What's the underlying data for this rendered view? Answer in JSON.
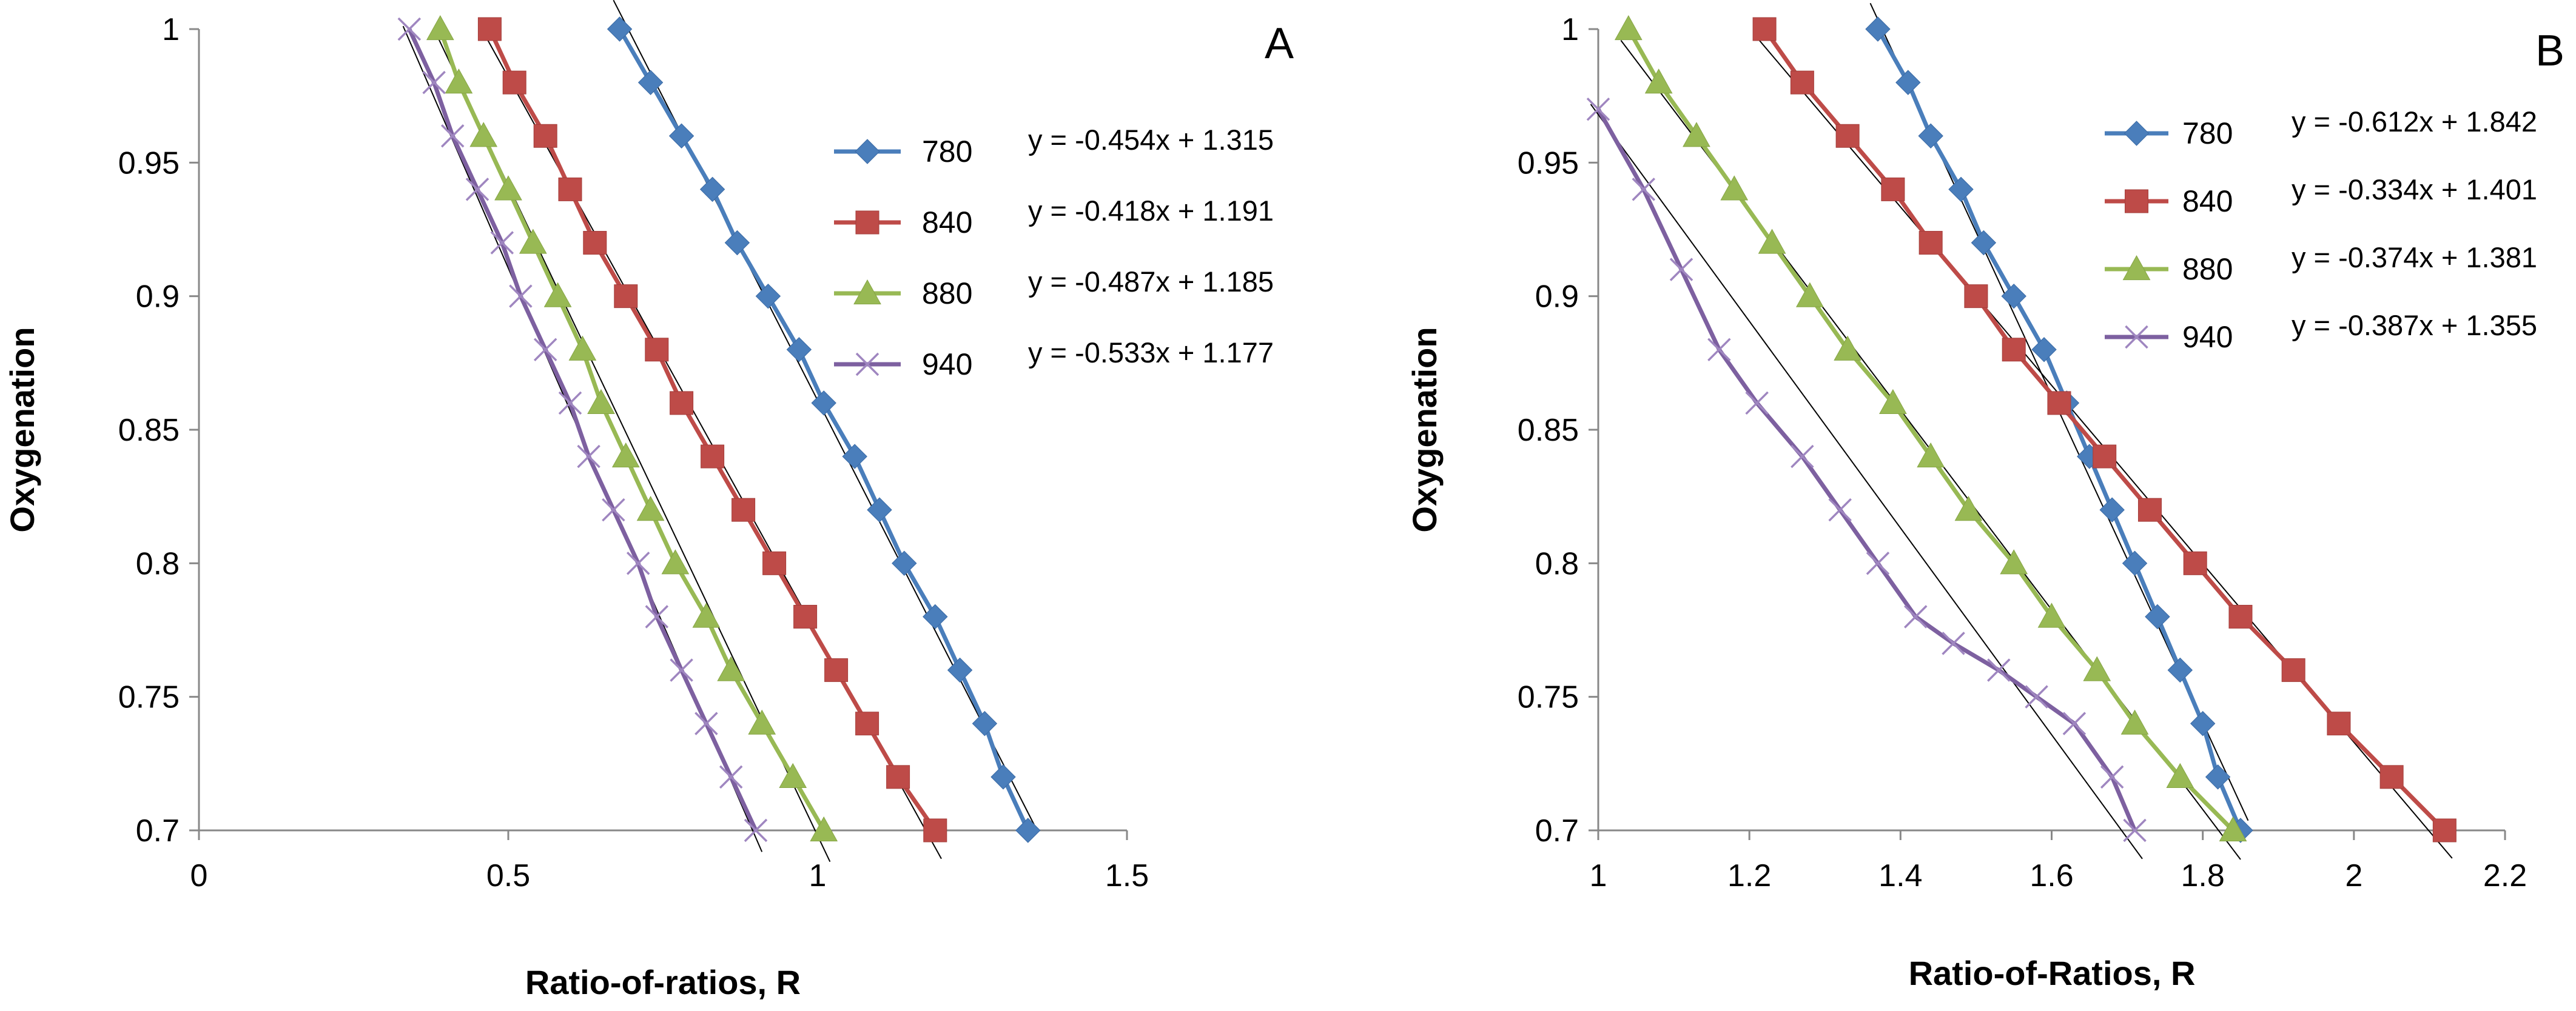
{
  "chart_data": [
    {
      "type": "line",
      "panel_label": "A",
      "xlabel": "Ratio-of-ratios, R",
      "ylabel": "Oxygenation",
      "xlim": [
        0,
        1.5
      ],
      "ylim": [
        0.7,
        1.0
      ],
      "x_ticks": [
        "0",
        "0.5",
        "1",
        "1.5"
      ],
      "y_ticks": [
        "0.7",
        "0.75",
        "0.8",
        "0.85",
        "0.9",
        "0.95",
        "1"
      ],
      "grid": false,
      "legend_position": "right",
      "series": [
        {
          "name": "780",
          "equation": "y = -0.454x + 1.315",
          "marker": "diamond",
          "color": "#4A7EBB",
          "points": [
            [
              0.68,
              1.0
            ],
            [
              0.73,
              0.98
            ],
            [
              0.78,
              0.96
            ],
            [
              0.83,
              0.94
            ],
            [
              0.87,
              0.92
            ],
            [
              0.92,
              0.9
            ],
            [
              0.97,
              0.88
            ],
            [
              1.01,
              0.86
            ],
            [
              1.06,
              0.84
            ],
            [
              1.1,
              0.82
            ],
            [
              1.14,
              0.8
            ],
            [
              1.19,
              0.78
            ],
            [
              1.23,
              0.76
            ],
            [
              1.27,
              0.74
            ],
            [
              1.3,
              0.72
            ],
            [
              1.34,
              0.7
            ]
          ]
        },
        {
          "name": "840",
          "equation": "y = -0.418x + 1.191",
          "marker": "square",
          "color": "#BE4B48",
          "points": [
            [
              0.47,
              1.0
            ],
            [
              0.51,
              0.98
            ],
            [
              0.56,
              0.96
            ],
            [
              0.6,
              0.94
            ],
            [
              0.64,
              0.92
            ],
            [
              0.69,
              0.9
            ],
            [
              0.74,
              0.88
            ],
            [
              0.78,
              0.86
            ],
            [
              0.83,
              0.84
            ],
            [
              0.88,
              0.82
            ],
            [
              0.93,
              0.8
            ],
            [
              0.98,
              0.78
            ],
            [
              1.03,
              0.76
            ],
            [
              1.08,
              0.74
            ],
            [
              1.13,
              0.72
            ],
            [
              1.19,
              0.7
            ]
          ]
        },
        {
          "name": "880",
          "equation": "y = -0.487x + 1.185",
          "marker": "triangle",
          "color": "#98B954",
          "points": [
            [
              0.39,
              1.0
            ],
            [
              0.42,
              0.98
            ],
            [
              0.46,
              0.96
            ],
            [
              0.5,
              0.94
            ],
            [
              0.54,
              0.92
            ],
            [
              0.58,
              0.9
            ],
            [
              0.62,
              0.88
            ],
            [
              0.65,
              0.86
            ],
            [
              0.69,
              0.84
            ],
            [
              0.73,
              0.82
            ],
            [
              0.77,
              0.8
            ],
            [
              0.82,
              0.78
            ],
            [
              0.86,
              0.76
            ],
            [
              0.91,
              0.74
            ],
            [
              0.96,
              0.72
            ],
            [
              1.01,
              0.7
            ]
          ]
        },
        {
          "name": "940",
          "equation": "y = -0.533x + 1.177",
          "marker": "x",
          "color": "#7D60A0",
          "points": [
            [
              0.34,
              1.0
            ],
            [
              0.38,
              0.98
            ],
            [
              0.41,
              0.96
            ],
            [
              0.45,
              0.94
            ],
            [
              0.49,
              0.92
            ],
            [
              0.52,
              0.9
            ],
            [
              0.56,
              0.88
            ],
            [
              0.6,
              0.86
            ],
            [
              0.63,
              0.84
            ],
            [
              0.67,
              0.82
            ],
            [
              0.71,
              0.8
            ],
            [
              0.74,
              0.78
            ],
            [
              0.78,
              0.76
            ],
            [
              0.82,
              0.74
            ],
            [
              0.86,
              0.72
            ],
            [
              0.9,
              0.7
            ]
          ]
        }
      ]
    },
    {
      "type": "line",
      "panel_label": "B",
      "xlabel": "Ratio-of-Ratios, R",
      "ylabel": "Oxygenation",
      "xlim": [
        1.0,
        2.2
      ],
      "ylim": [
        0.7,
        1.0
      ],
      "x_ticks": [
        "1",
        "1.2",
        "1.4",
        "1.6",
        "1.8",
        "2",
        "2.2"
      ],
      "y_ticks": [
        "0.7",
        "0.75",
        "0.8",
        "0.85",
        "0.9",
        "0.95",
        "1"
      ],
      "grid": false,
      "legend_position": "right",
      "series": [
        {
          "name": "780",
          "equation": "y = -0.612x + 1.842",
          "marker": "diamond",
          "color": "#4A7EBB",
          "points": [
            [
              1.37,
              1.0
            ],
            [
              1.41,
              0.98
            ],
            [
              1.44,
              0.96
            ],
            [
              1.48,
              0.94
            ],
            [
              1.51,
              0.92
            ],
            [
              1.55,
              0.9
            ],
            [
              1.59,
              0.88
            ],
            [
              1.62,
              0.86
            ],
            [
              1.65,
              0.84
            ],
            [
              1.68,
              0.82
            ],
            [
              1.71,
              0.8
            ],
            [
              1.74,
              0.78
            ],
            [
              1.77,
              0.76
            ],
            [
              1.8,
              0.74
            ],
            [
              1.82,
              0.72
            ],
            [
              1.85,
              0.7
            ]
          ]
        },
        {
          "name": "840",
          "equation": "y = -0.334x + 1.401",
          "marker": "square",
          "color": "#BE4B48",
          "points": [
            [
              1.22,
              1.0
            ],
            [
              1.27,
              0.98
            ],
            [
              1.33,
              0.96
            ],
            [
              1.39,
              0.94
            ],
            [
              1.44,
              0.92
            ],
            [
              1.5,
              0.9
            ],
            [
              1.55,
              0.88
            ],
            [
              1.61,
              0.86
            ],
            [
              1.67,
              0.84
            ],
            [
              1.73,
              0.82
            ],
            [
              1.79,
              0.8
            ],
            [
              1.85,
              0.78
            ],
            [
              1.92,
              0.76
            ],
            [
              1.98,
              0.74
            ],
            [
              2.05,
              0.72
            ],
            [
              2.12,
              0.7
            ]
          ]
        },
        {
          "name": "880",
          "equation": "y = -0.374x + 1.381",
          "marker": "triangle",
          "color": "#98B954",
          "points": [
            [
              1.04,
              1.0
            ],
            [
              1.08,
              0.98
            ],
            [
              1.13,
              0.96
            ],
            [
              1.18,
              0.94
            ],
            [
              1.23,
              0.92
            ],
            [
              1.28,
              0.9
            ],
            [
              1.33,
              0.88
            ],
            [
              1.39,
              0.86
            ],
            [
              1.44,
              0.84
            ],
            [
              1.49,
              0.82
            ],
            [
              1.55,
              0.8
            ],
            [
              1.6,
              0.78
            ],
            [
              1.66,
              0.76
            ],
            [
              1.71,
              0.74
            ],
            [
              1.77,
              0.72
            ],
            [
              1.84,
              0.7
            ]
          ]
        },
        {
          "name": "940",
          "equation": "y = -0.387x + 1.355",
          "marker": "x",
          "color": "#7D60A0",
          "points": [
            [
              1.0,
              0.97
            ],
            [
              1.06,
              0.94
            ],
            [
              1.11,
              0.91
            ],
            [
              1.16,
              0.88
            ],
            [
              1.21,
              0.86
            ],
            [
              1.27,
              0.84
            ],
            [
              1.32,
              0.82
            ],
            [
              1.37,
              0.8
            ],
            [
              1.42,
              0.78
            ],
            [
              1.47,
              0.77
            ],
            [
              1.53,
              0.76
            ],
            [
              1.58,
              0.75
            ],
            [
              1.63,
              0.74
            ],
            [
              1.68,
              0.72
            ],
            [
              1.71,
              0.7
            ]
          ]
        }
      ]
    }
  ]
}
